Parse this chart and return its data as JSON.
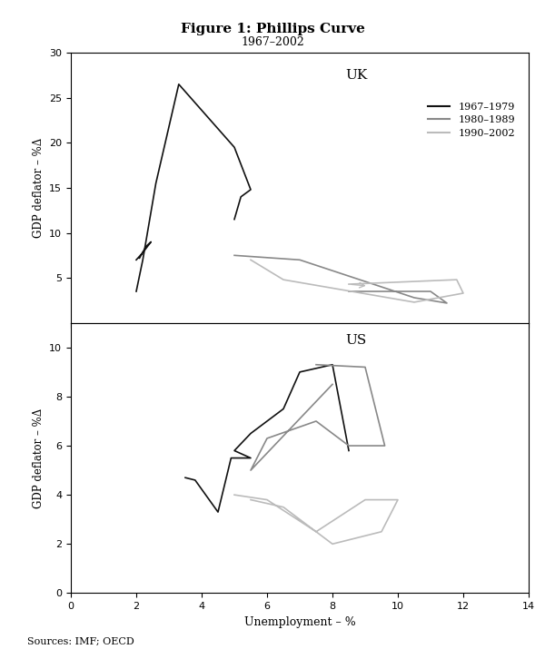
{
  "title": "Figure 1: Phillips Curve",
  "subtitle": "1967–2002",
  "source": "Sources: IMF; OECD",
  "legend_labels": [
    "1967–1979",
    "1980–1989",
    "1990–2002"
  ],
  "legend_colors": [
    "#111111",
    "#888888",
    "#bbbbbb"
  ],
  "uk_ylabel": "GDP deflator – %Δ",
  "us_ylabel": "GDP deflator – %Δ",
  "xlabel": "Unemployment – %",
  "uk_title": "UK",
  "us_title": "US",
  "uk_ylim": [
    0,
    30
  ],
  "uk_xlim": [
    0,
    14
  ],
  "us_ylim": [
    0,
    11
  ],
  "us_xlim": [
    0,
    14
  ],
  "uk_yticks": [
    5,
    10,
    15,
    20,
    25,
    30
  ],
  "us_yticks": [
    0,
    2,
    4,
    6,
    8,
    10
  ],
  "shared_xticks": [
    0,
    2,
    4,
    6,
    8,
    10,
    12,
    14
  ],
  "uk_1967_x": [
    2.0,
    2.2,
    2.6,
    3.3,
    5.0,
    5.5,
    5.2,
    5.0
  ],
  "uk_1967_y": [
    3.5,
    7.0,
    15.5,
    26.5,
    19.5,
    14.8,
    14.0,
    11.5
  ],
  "uk_1967b_x": [
    2.0,
    2.2,
    2.45,
    2.3,
    2.1
  ],
  "uk_1967b_y": [
    7.0,
    7.8,
    9.0,
    8.5,
    7.2
  ],
  "uk_1980_x": [
    5.0,
    7.0,
    10.5,
    11.5,
    11.0,
    8.5
  ],
  "uk_1980_y": [
    7.5,
    7.0,
    2.8,
    2.2,
    3.5,
    3.5
  ],
  "uk_1990_x": [
    5.5,
    6.5,
    10.5,
    12.0,
    11.8,
    8.5
  ],
  "uk_1990_y": [
    7.0,
    4.8,
    2.3,
    3.3,
    4.8,
    4.3
  ],
  "us_1967_x": [
    3.5,
    3.8,
    4.5,
    4.9,
    5.5,
    5.0,
    5.5,
    6.5,
    7.0,
    8.0,
    8.5
  ],
  "us_1967_y": [
    4.7,
    4.6,
    3.3,
    5.5,
    5.5,
    5.8,
    6.5,
    7.5,
    9.0,
    9.3,
    5.8
  ],
  "us_1980_x": [
    7.5,
    9.0,
    9.6,
    8.5,
    7.5,
    6.0,
    5.5,
    8.0
  ],
  "us_1980_y": [
    9.3,
    9.2,
    6.0,
    6.0,
    7.0,
    6.3,
    5.0,
    8.5
  ],
  "us_1990_x": [
    5.5,
    6.5,
    7.5,
    8.0,
    9.5,
    10.0,
    9.0,
    7.5,
    6.0,
    5.0
  ],
  "us_1990_y": [
    3.8,
    3.5,
    2.5,
    2.0,
    2.5,
    3.8,
    3.8,
    2.5,
    3.8,
    4.0
  ]
}
